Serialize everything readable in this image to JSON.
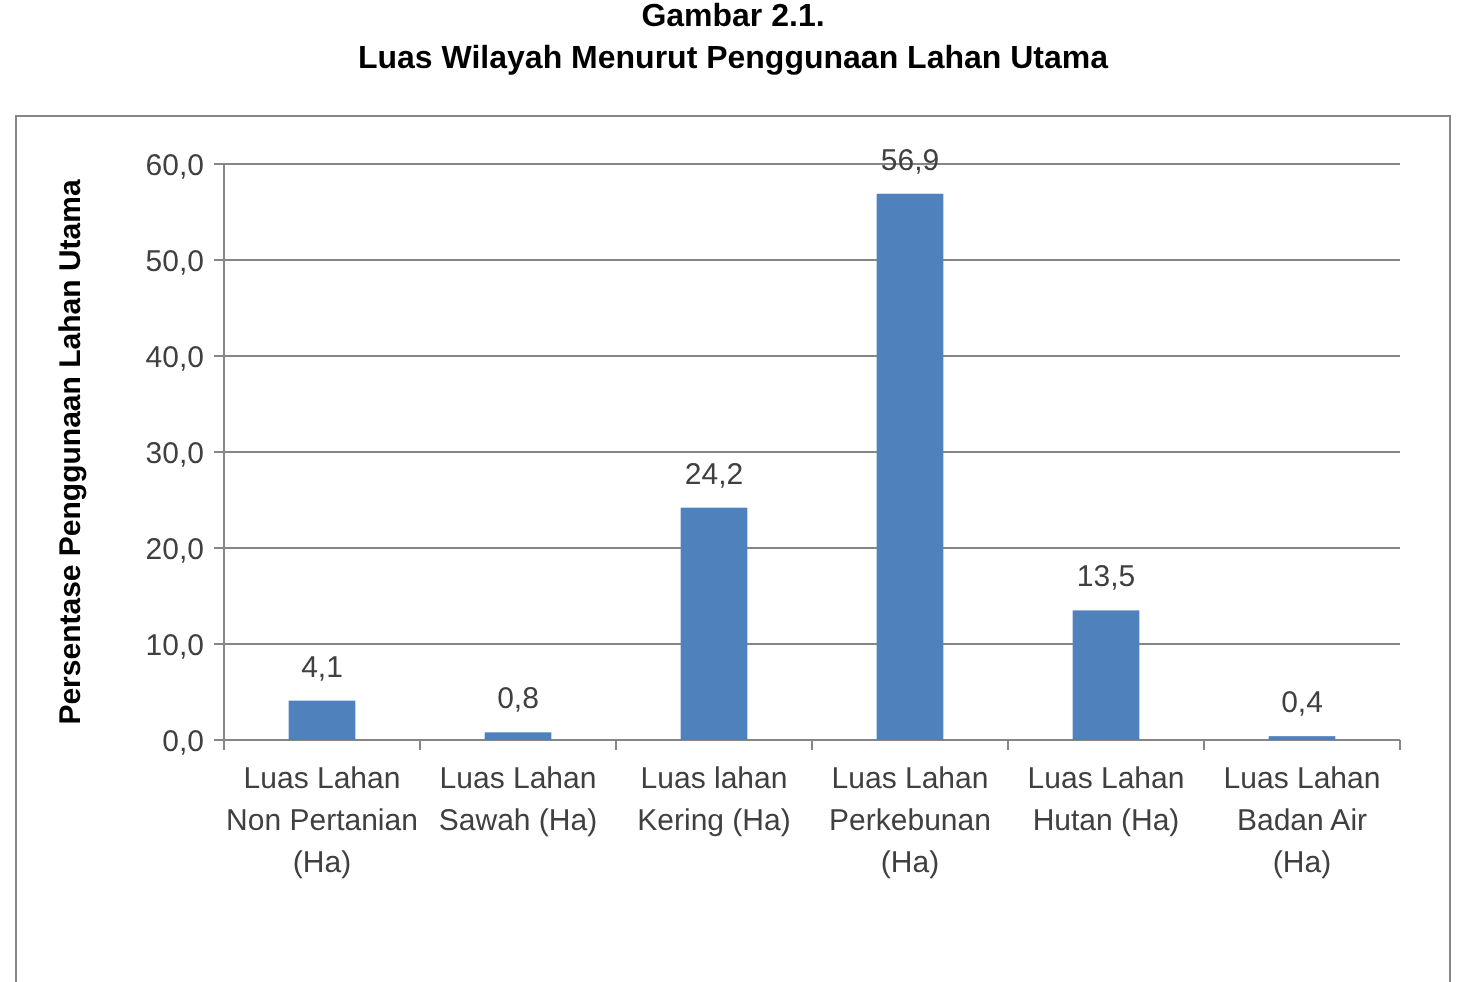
{
  "chart_data": {
    "type": "bar",
    "title": "Gambar 2.1.",
    "subtitle": "Luas Wilayah Menurut Penggunaan Lahan Utama",
    "ylabel": "Persentase Penggunaan Lahan Utama",
    "categories": [
      "Luas Lahan Non Pertanian (Ha)",
      "Luas Lahan Sawah (Ha)",
      "Luas lahan Kering (Ha)",
      "Luas Lahan Perkebunan (Ha)",
      "Luas Lahan Hutan (Ha)",
      "Luas Lahan Badan Air (Ha)"
    ],
    "values": [
      4.1,
      0.8,
      24.2,
      56.9,
      13.5,
      0.4
    ],
    "value_labels": [
      "4,1",
      "0,8",
      "24,2",
      "56,9",
      "13,5",
      "0,4"
    ],
    "color": "#4f81bd",
    "ylim": [
      0,
      60
    ],
    "yticks": [
      {
        "value": 0,
        "label": "0,0"
      },
      {
        "value": 10,
        "label": "10,0"
      },
      {
        "value": 20,
        "label": "20,0"
      },
      {
        "value": 30,
        "label": "30,0"
      },
      {
        "value": 40,
        "label": "40,0"
      },
      {
        "value": 50,
        "label": "50,0"
      },
      {
        "value": 60,
        "label": "60,0"
      }
    ],
    "grid": "y"
  }
}
